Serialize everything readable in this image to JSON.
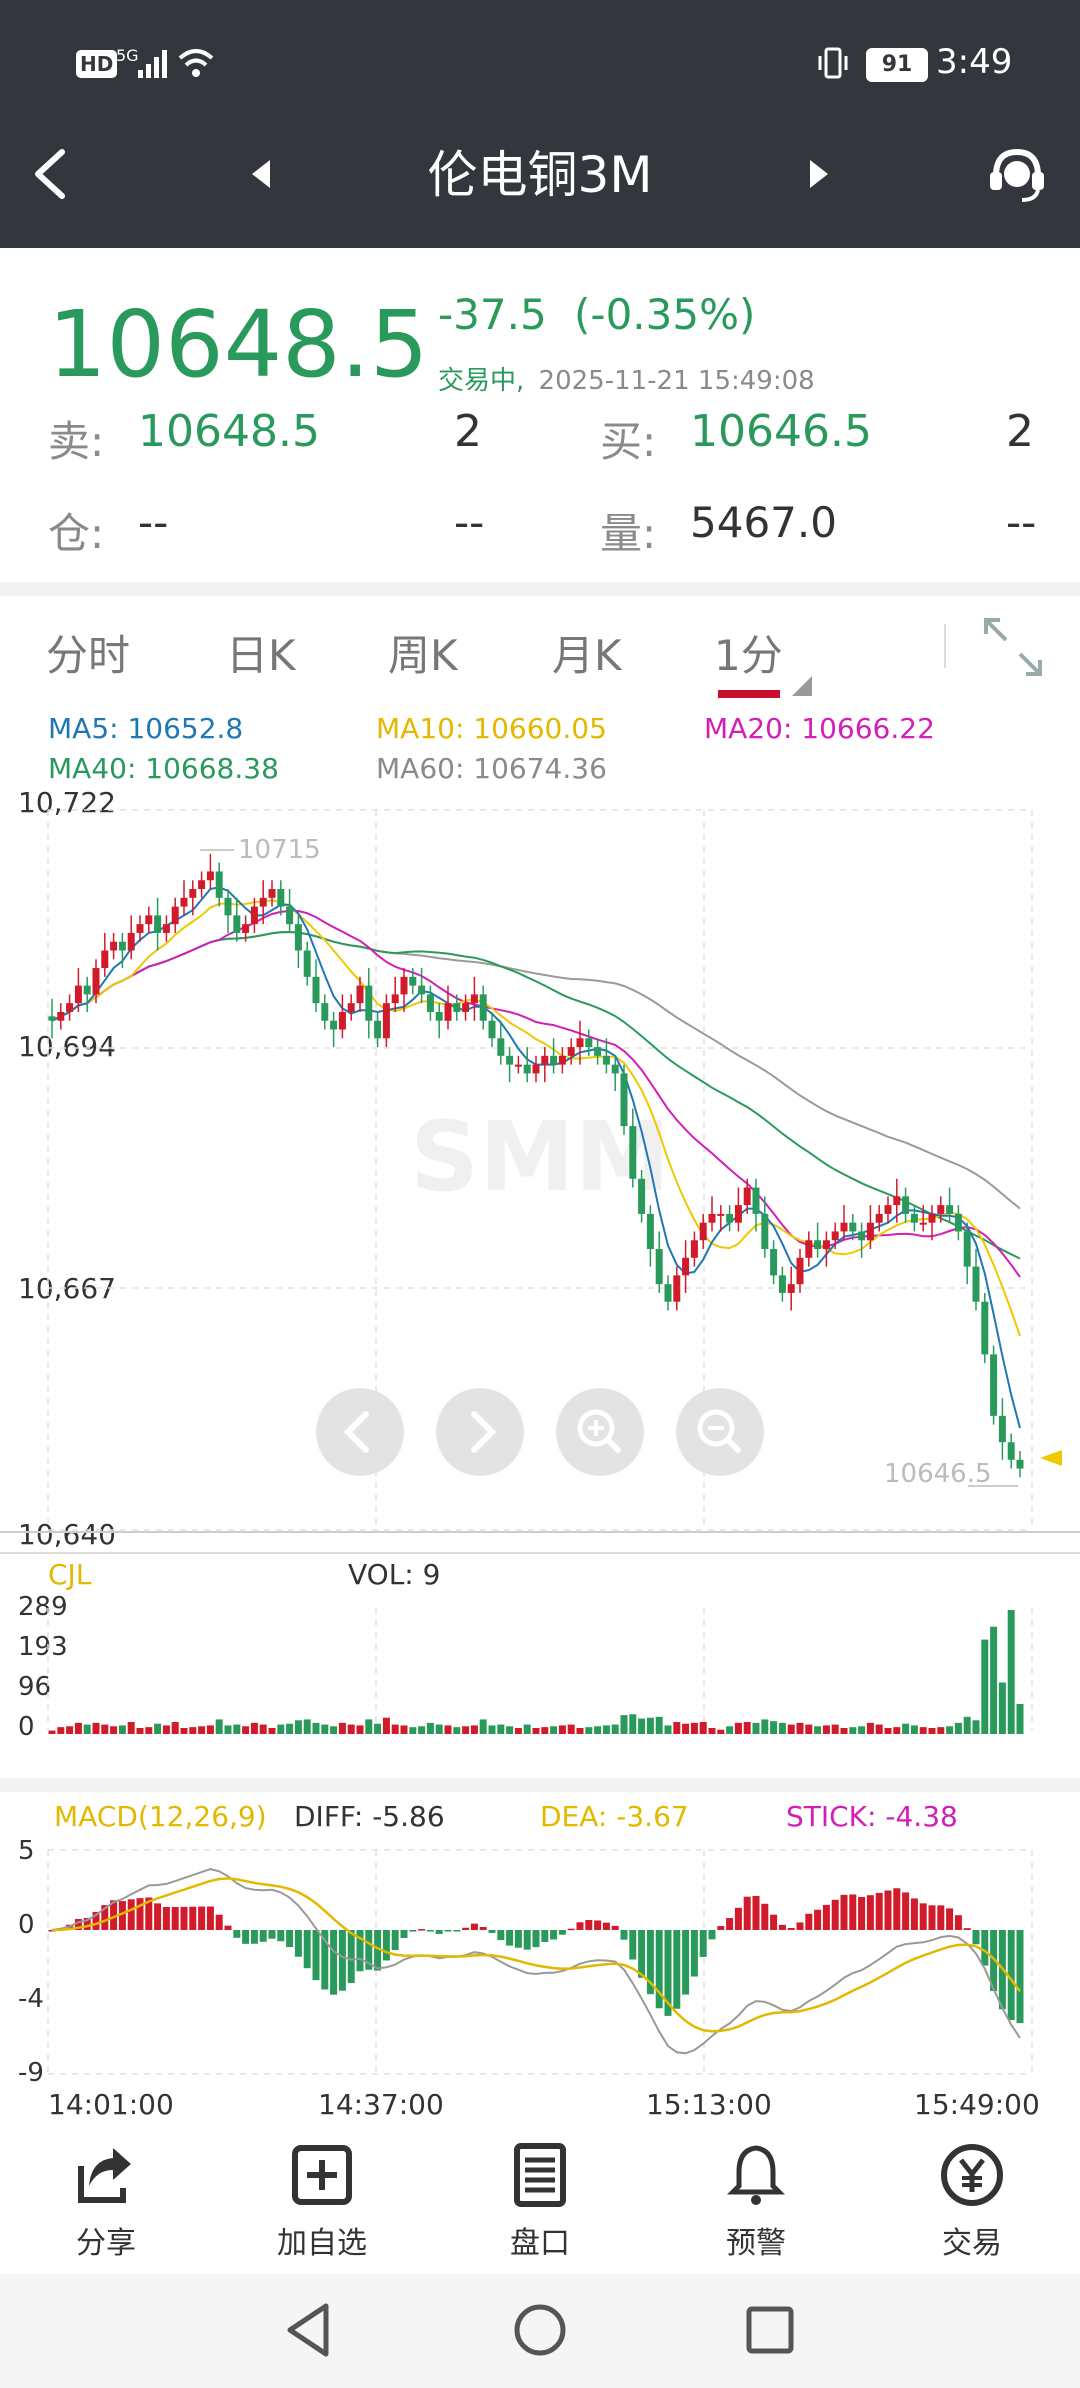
{
  "status": {
    "hd": "HD",
    "signal": "5G",
    "battery": "91",
    "time": "3:49"
  },
  "nav": {
    "title": "伦电铜3M"
  },
  "quote": {
    "price": "10648.5",
    "change": "-37.5",
    "change_pct": "(-0.35%)",
    "trade_status": "交易中,",
    "datetime": "2025-11-21 15:49:08",
    "sell_label": "卖:",
    "sell_price": "10648.5",
    "sell_qty": "2",
    "buy_label": "买:",
    "buy_price": "10646.5",
    "buy_qty": "2",
    "position_label": "仓:",
    "position_value": "--",
    "position_change": "--",
    "volume_label": "量:",
    "volume_value": "5467.0",
    "volume_change": "--"
  },
  "tabs": [
    {
      "label": "分时"
    },
    {
      "label": "日K"
    },
    {
      "label": "周K"
    },
    {
      "label": "月K"
    },
    {
      "label": "1分"
    }
  ],
  "ma_legend": {
    "ma5": "MA5: 10652.8",
    "ma10": "MA10: 10660.05",
    "ma20": "MA20: 10666.22",
    "ma40": "MA40: 10668.38",
    "ma60": "MA60: 10674.36"
  },
  "colors": {
    "up": "#d11a2a",
    "down": "#2a9a5c",
    "ma5": "#1f78b4",
    "ma10": "#f0c800",
    "ma20": "#d21fb5",
    "ma40": "#2a9a5c",
    "ma60": "#9a9a9a"
  },
  "price_axis": [
    "10,722",
    "10,694",
    "10,667",
    "10,640"
  ],
  "max_marker": "10715",
  "last_marker": "10646.5",
  "watermark": "SMM",
  "volume_panel": {
    "title": "CJL",
    "vol": "VOL: 9",
    "axis": [
      "289",
      "193",
      "96",
      "0"
    ]
  },
  "macd_panel": {
    "title": "MACD(12,26,9)",
    "diff": "DIFF: -5.86",
    "dea": "DEA: -3.67",
    "stick": "STICK: -4.38",
    "axis": [
      "5",
      "0",
      "-4",
      "-9"
    ]
  },
  "time_axis": [
    "14:01:00",
    "14:37:00",
    "15:13:00",
    "15:49:00"
  ],
  "chart_data": {
    "type": "candlestick",
    "ylim": [
      10640,
      10722
    ],
    "x_ticks": [
      "14:01:00",
      "14:37:00",
      "15:13:00",
      "15:49:00"
    ],
    "close_approx": [
      10698,
      10699,
      10700,
      10702,
      10701,
      10704,
      10706,
      10707,
      10706,
      10708,
      10709,
      10710,
      10708,
      10709,
      10711,
      10712,
      10713,
      10714,
      10715,
      10712,
      10710,
      10708,
      10709,
      10711,
      10712,
      10713,
      10711,
      10709,
      10706,
      10703,
      10700,
      10698,
      10697,
      10699,
      10700,
      10702,
      10698,
      10696,
      10700,
      10701,
      10703,
      10702,
      10701,
      10699,
      10698,
      10700,
      10699,
      10700,
      10701,
      10698,
      10696,
      10694,
      10693,
      10693,
      10692,
      10693,
      10694,
      10693,
      10694,
      10695,
      10696,
      10695,
      10694,
      10693,
      10692,
      10686,
      10680,
      10676,
      10672,
      10668,
      10666,
      10669,
      10671,
      10673,
      10675,
      10676,
      10676,
      10675,
      10677,
      10679,
      10676,
      10672,
      10669,
      10667,
      10668,
      10671,
      10673,
      10672,
      10673,
      10674,
      10675,
      10674,
      10673,
      10675,
      10676,
      10677,
      10678,
      10676,
      10675,
      10675,
      10676,
      10677,
      10676,
      10674,
      10670,
      10666,
      10660,
      10653,
      10650,
      10648,
      10647
    ],
    "volume_axis": [
      0,
      96,
      193,
      289
    ],
    "macd_axis": [
      -9,
      -4,
      0,
      5
    ]
  },
  "bottom_bar": [
    {
      "label": "分享"
    },
    {
      "label": "加自选"
    },
    {
      "label": "盘口"
    },
    {
      "label": "预警"
    },
    {
      "label": "交易"
    }
  ]
}
